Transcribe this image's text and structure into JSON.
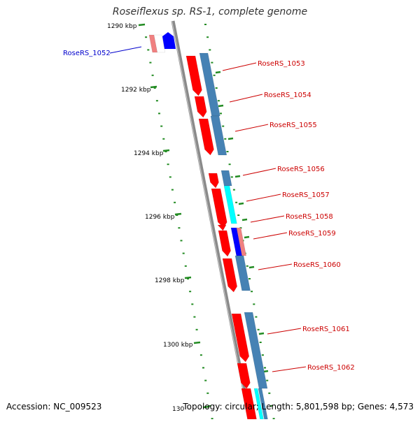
{
  "title": "Roseiflexus sp. RS-1, complete genome",
  "accession_label": "Accession: NC_009523",
  "summary_label": "Topology: circular; Length: 5,801,598 bp; Genes: 4,573",
  "colors": {
    "background": "#ffffff",
    "backbone": "#8a8a8a",
    "tick": "#228b22",
    "label_red": "#cc0000",
    "label_blue": "#0000cc",
    "gene_red": "#ff0000",
    "gene_steelblue": "#4682b4",
    "gene_blue": "#0000ff",
    "gene_cyan": "#00ffff",
    "gene_pink": "#f08080"
  },
  "scale": {
    "unit_label": "kbp",
    "major_ticks": [
      "1290 kbp",
      "1292 kbp",
      "1294 kbp",
      "1296 kbp",
      "1298 kbp",
      "1300 kbp",
      "130"
    ]
  },
  "genes": [
    {
      "label": "RoseRS_1052",
      "color": "blue"
    },
    {
      "label": "RoseRS_1053",
      "color": "red"
    },
    {
      "label": "RoseRS_1054",
      "color": "red"
    },
    {
      "label": "RoseRS_1055",
      "color": "red"
    },
    {
      "label": "RoseRS_1056",
      "color": "red"
    },
    {
      "label": "RoseRS_1057",
      "color": "red"
    },
    {
      "label": "RoseRS_1058",
      "color": "red"
    },
    {
      "label": "RoseRS_1059",
      "color": "red"
    },
    {
      "label": "RoseRS_1060",
      "color": "red"
    },
    {
      "label": "RoseRS_1061",
      "color": "red"
    },
    {
      "label": "RoseRS_1062",
      "color": "red"
    }
  ]
}
